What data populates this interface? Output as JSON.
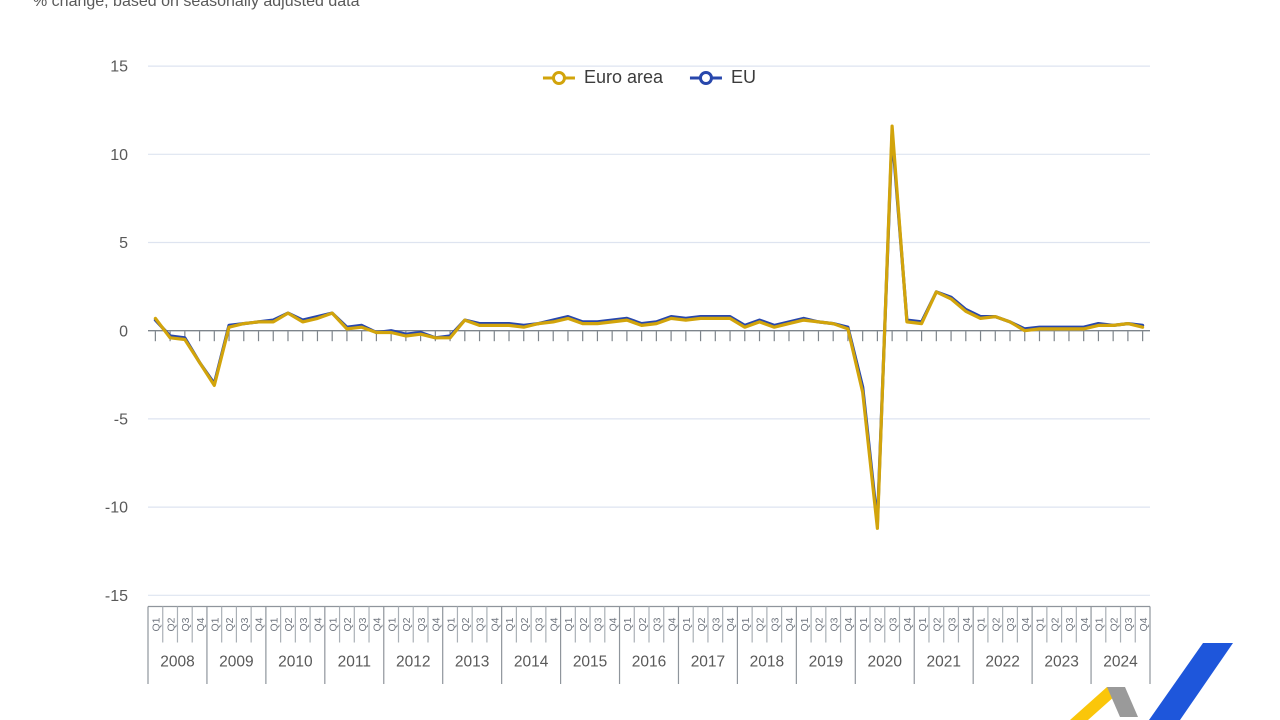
{
  "title": "% change, based on seasonally adjusted data",
  "chart_data": {
    "type": "line",
    "title": "% change, based on seasonally adjusted data",
    "quarter_labels": [
      "Q1",
      "Q2",
      "Q3",
      "Q4"
    ],
    "years": [
      2008,
      2009,
      2010,
      2011,
      2012,
      2013,
      2014,
      2015,
      2016,
      2017,
      2018,
      2019,
      2020,
      2021,
      2022,
      2023,
      2024
    ],
    "yticks": [
      15,
      10,
      5,
      0,
      -5,
      -10,
      -15
    ],
    "ylim": [
      -15,
      15
    ],
    "grid": true,
    "legend_position": "top-center",
    "series": [
      {
        "name": "Euro area",
        "color": "#D2A40B",
        "values": [
          0.7,
          -0.4,
          -0.5,
          -1.8,
          -3.1,
          0.2,
          0.4,
          0.5,
          0.5,
          1.0,
          0.5,
          0.7,
          1.0,
          0.1,
          0.2,
          -0.1,
          -0.1,
          -0.3,
          -0.2,
          -0.4,
          -0.4,
          0.6,
          0.3,
          0.3,
          0.3,
          0.2,
          0.4,
          0.5,
          0.7,
          0.4,
          0.4,
          0.5,
          0.6,
          0.3,
          0.4,
          0.7,
          0.6,
          0.7,
          0.7,
          0.7,
          0.2,
          0.5,
          0.2,
          0.4,
          0.6,
          0.5,
          0.4,
          0.1,
          -3.5,
          -11.2,
          11.6,
          0.5,
          0.4,
          2.2,
          1.8,
          1.1,
          0.7,
          0.8,
          0.5,
          0.0,
          0.1,
          0.1,
          0.1,
          0.1,
          0.3,
          0.3,
          0.4,
          0.2
        ]
      },
      {
        "name": "EU",
        "color": "#2847AC",
        "values": [
          0.6,
          -0.3,
          -0.4,
          -1.8,
          -3.0,
          0.3,
          0.4,
          0.5,
          0.6,
          1.0,
          0.6,
          0.8,
          1.0,
          0.2,
          0.3,
          -0.1,
          0.0,
          -0.2,
          -0.1,
          -0.4,
          -0.3,
          0.6,
          0.4,
          0.4,
          0.4,
          0.3,
          0.4,
          0.6,
          0.8,
          0.5,
          0.5,
          0.6,
          0.7,
          0.4,
          0.5,
          0.8,
          0.7,
          0.8,
          0.8,
          0.8,
          0.3,
          0.6,
          0.3,
          0.5,
          0.7,
          0.5,
          0.4,
          0.2,
          -3.2,
          -10.9,
          11.2,
          0.6,
          0.5,
          2.2,
          1.9,
          1.2,
          0.8,
          0.8,
          0.5,
          0.1,
          0.2,
          0.2,
          0.2,
          0.2,
          0.4,
          0.3,
          0.4,
          0.3
        ]
      }
    ],
    "colors": {
      "grid": "#dee4f0",
      "axis": "#7d848b",
      "tick_label": "#595959",
      "quarter_label": "#70767f",
      "year_label": "#595959",
      "cell_divider": "#aab0b6",
      "year_divider": "#8f959c"
    }
  },
  "logo": {
    "name": "eurostat-logo",
    "yellow": "#FAC60A",
    "gray": "#9A9A9A",
    "blue": "#1E56DB"
  }
}
